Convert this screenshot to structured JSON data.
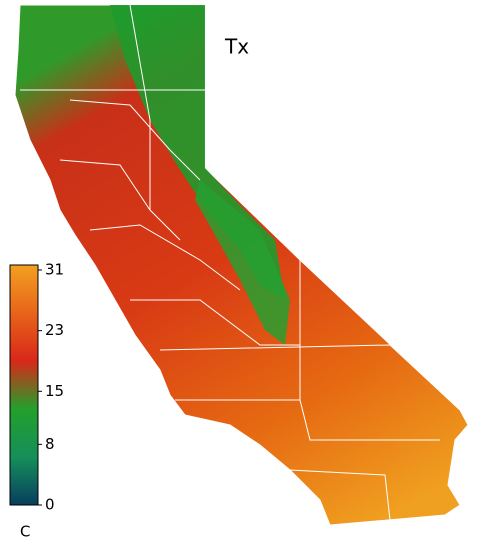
{
  "map": {
    "title": "Tx",
    "colorbar": {
      "unit": "C",
      "lim": [
        0,
        31
      ],
      "ticks": [
        0,
        8,
        15,
        23,
        31
      ],
      "colors": [
        "#083e5e",
        "#168f5a",
        "#23a02c",
        "#d8281a",
        "#e8641a",
        "#f2a020"
      ]
    }
  }
}
